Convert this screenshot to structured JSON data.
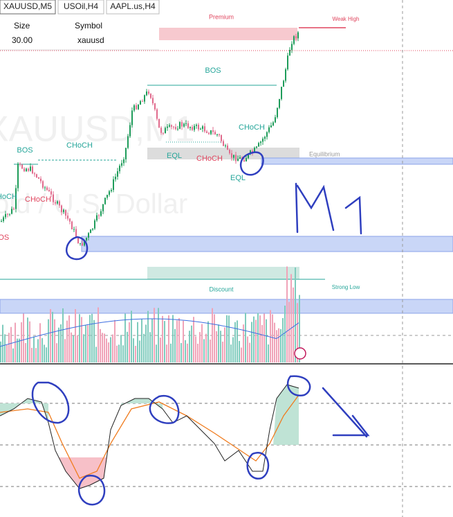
{
  "tabs": [
    "XAUUSD,M5",
    "USOil,H4",
    "AAPL.us,H4"
  ],
  "table": {
    "headers": [
      "Size",
      "Symbol"
    ],
    "rows": [
      [
        "30.00",
        "xauusd"
      ]
    ]
  },
  "watermark": {
    "symbol": "XAUUSD,M1",
    "description": "Gold / U.S. Dollar"
  },
  "zones": {
    "premium": "Premium",
    "weak_high": "Weak High",
    "equilibrium": "Equilibrium",
    "discount": "Discount",
    "strong_low": "Strong Low"
  },
  "structure_labels": [
    "BOS",
    "CHoCH",
    "CHoCH",
    "CHoCH",
    "BOS",
    "BOS",
    "EQL",
    "CHoCH",
    "CHoCH",
    "EQL"
  ]
}
